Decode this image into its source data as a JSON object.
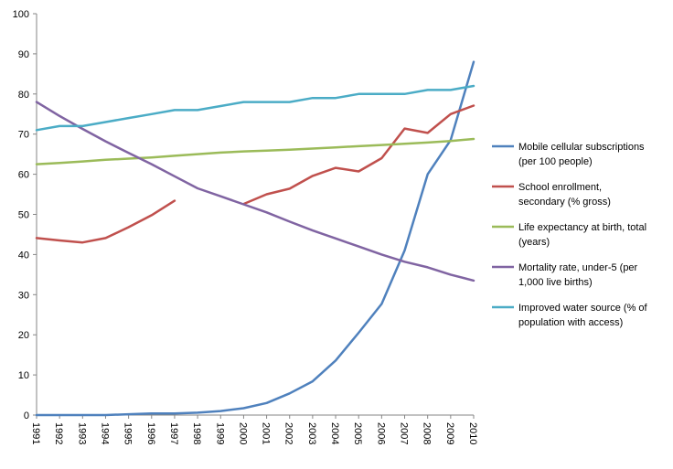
{
  "chart_data": {
    "type": "line",
    "title": "",
    "xlabel": "",
    "ylabel": "",
    "ylim": [
      0,
      100
    ],
    "yticks": [
      0,
      10,
      20,
      30,
      40,
      50,
      60,
      70,
      80,
      90,
      100
    ],
    "grid": false,
    "legend_position": "right",
    "x": [
      1991,
      1992,
      1993,
      1994,
      1995,
      1996,
      1997,
      1998,
      1999,
      2000,
      2001,
      2002,
      2003,
      2004,
      2005,
      2006,
      2007,
      2008,
      2009,
      2010
    ],
    "series": [
      {
        "name": "Mobile cellular subscriptions (per 100 people)",
        "color": "#4f81bd",
        "values": [
          0,
          0,
          0,
          0,
          0.2,
          0.4,
          0.4,
          0.6,
          1.0,
          1.7,
          3.0,
          5.4,
          8.4,
          13.6,
          20.5,
          27.7,
          41,
          60,
          68.5,
          88
        ]
      },
      {
        "name": "School enrollment, secondary (% gross)",
        "color": "#c0504d",
        "values": [
          44.1,
          43.5,
          43,
          44.1,
          46.8,
          49.8,
          53.4,
          null,
          null,
          52.6,
          55,
          56.4,
          59.6,
          61.6,
          60.7,
          64,
          71.4,
          70.3,
          75,
          77.1
        ]
      },
      {
        "name": "Life expectancy at birth, total (years)",
        "color": "#9bbb59",
        "values": [
          62.5,
          62.8,
          63.2,
          63.6,
          63.9,
          64.2,
          64.6,
          65,
          65.4,
          65.7,
          65.9,
          66.1,
          66.4,
          66.7,
          67,
          67.3,
          67.6,
          67.9,
          68.3,
          68.8
        ]
      },
      {
        "name": "Mortality rate, under-5 (per 1,000 live births)",
        "color": "#8064a2",
        "values": [
          78,
          74.5,
          71.3,
          68.2,
          65.3,
          62.5,
          59.5,
          56.5,
          54.5,
          52.5,
          50.5,
          48.2,
          46,
          44,
          42,
          40,
          38.2,
          36.8,
          35,
          33.5
        ]
      },
      {
        "name": "Improved water source (% of population with access)",
        "color": "#4bacc6",
        "values": [
          71,
          72,
          72,
          73,
          74,
          75,
          76,
          76,
          77,
          78,
          78,
          78,
          79,
          79,
          80,
          80,
          80,
          81,
          81,
          82
        ]
      }
    ],
    "legend": [
      [
        "Mobile cellular subscriptions",
        "(per 100 people)"
      ],
      [
        "School enrollment,",
        "secondary (% gross)"
      ],
      [
        "Life expectancy at birth, total",
        "(years)"
      ],
      [
        "Mortality rate, under-5 (per",
        "1,000 live births)"
      ],
      [
        "Improved water source (% of",
        "population with access)"
      ]
    ]
  }
}
